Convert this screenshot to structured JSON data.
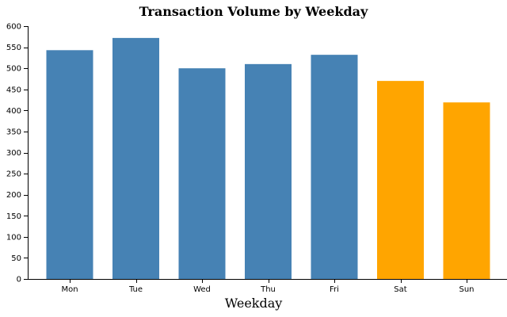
{
  "chart_data": {
    "type": "bar",
    "title": "Transaction Volume by Weekday",
    "xlabel": "Weekday",
    "ylabel": "",
    "categories": [
      "Mon",
      "Tue",
      "Wed",
      "Thu",
      "Fri",
      "Sat",
      "Sun"
    ],
    "values": [
      543,
      572,
      500,
      510,
      532,
      470,
      419
    ],
    "ylim": [
      0,
      600
    ],
    "yticks": [
      0,
      50,
      100,
      150,
      200,
      250,
      300,
      350,
      400,
      450,
      500,
      550,
      600
    ],
    "grid": false,
    "legend": "none",
    "colors": {
      "weekday": "#4682b4",
      "weekend": "#ffa500"
    },
    "bar_colors": [
      "#4682b4",
      "#4682b4",
      "#4682b4",
      "#4682b4",
      "#4682b4",
      "#ffa500",
      "#ffa500"
    ]
  }
}
